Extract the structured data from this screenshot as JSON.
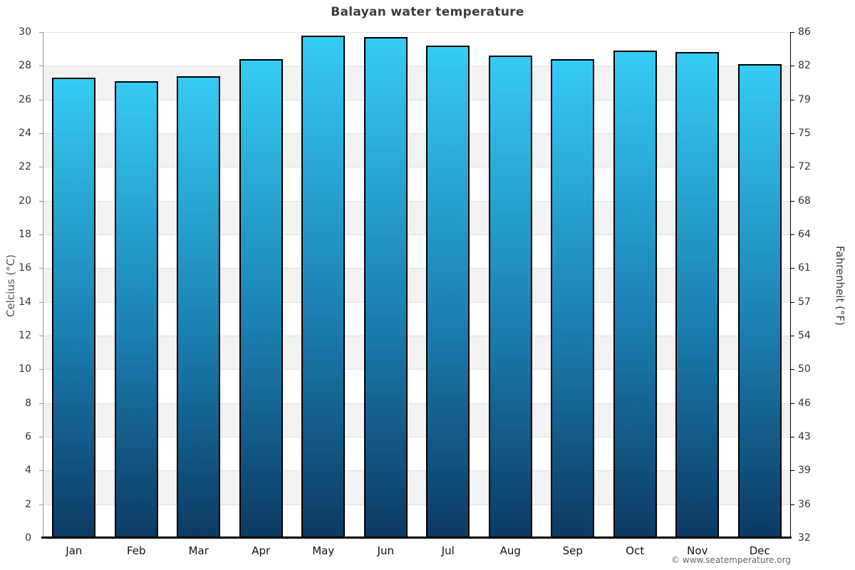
{
  "page": {
    "footer": "© www.seatemperature.org"
  },
  "chart_data": {
    "type": "bar",
    "title": "Balayan water temperature",
    "categories": [
      "Jan",
      "Feb",
      "Mar",
      "Apr",
      "May",
      "Jun",
      "Jul",
      "Aug",
      "Sep",
      "Oct",
      "Nov",
      "Dec"
    ],
    "series": [
      {
        "name": "Water temperature",
        "values": [
          27.3,
          27.1,
          27.4,
          28.4,
          29.8,
          29.7,
          29.2,
          28.6,
          28.4,
          28.9,
          28.8,
          28.1
        ]
      }
    ],
    "xlabel": "",
    "ylabel_left": "Celcius (°C)",
    "ylabel_right": "Fahrenheit (°F)",
    "ylim": [
      0,
      30
    ],
    "celsius_ticks": [
      30,
      28,
      26,
      24,
      22,
      20,
      18,
      16,
      14,
      12,
      10,
      8,
      6,
      4,
      2,
      0
    ],
    "fahrenheit_ticks": [
      86,
      82,
      79,
      75,
      72,
      68,
      64,
      61,
      57,
      54,
      50,
      46,
      43,
      39,
      36,
      32
    ],
    "legend": "none",
    "grid": "alternating-horizontal-bands",
    "band_colors": [
      "#ffffff",
      "#f2f2f2"
    ],
    "gridline_color": "#e1e1e1",
    "bar_gradient_top": "#35cbf4",
    "bar_gradient_mid": "#1b80b2",
    "bar_gradient_bottom": "#0c3a63",
    "bar_border_color": "#000000"
  }
}
